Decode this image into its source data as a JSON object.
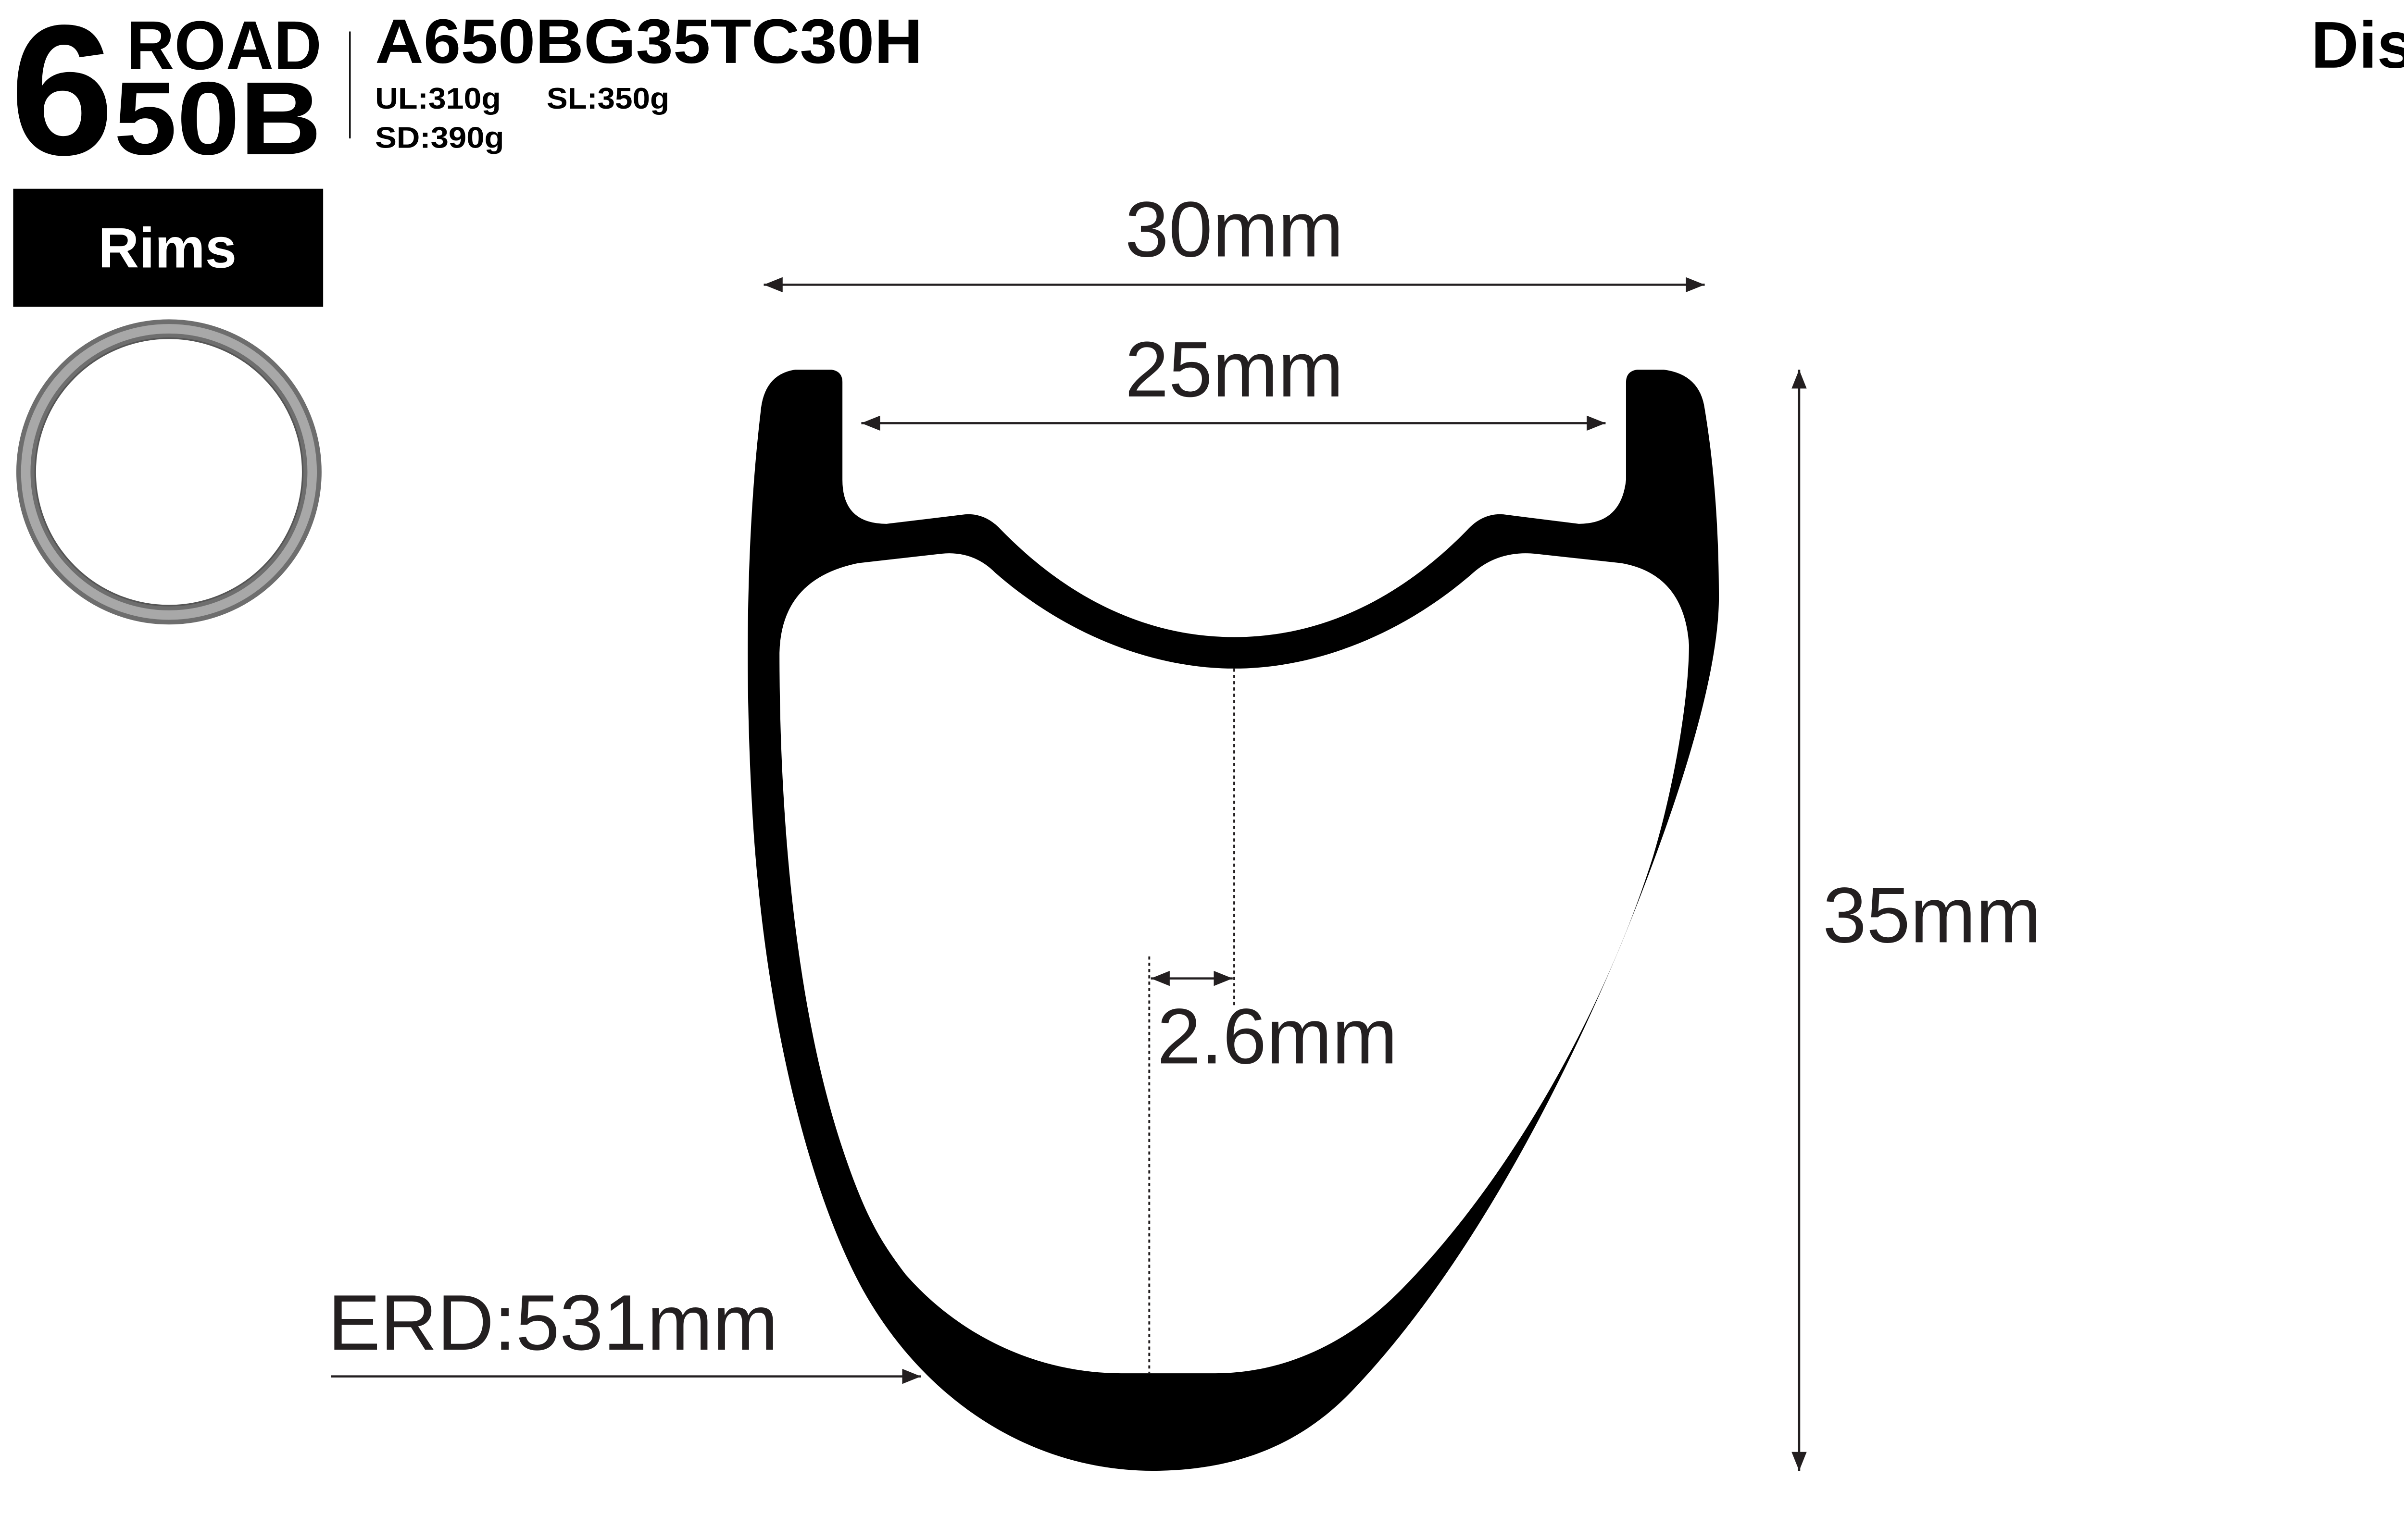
{
  "header": {
    "big_digit": "6",
    "category": "ROAD",
    "size_rest": "50B",
    "model": "A650BG35TC30H",
    "weights": [
      "UL:310g",
      "SL:350g",
      "SD:390g"
    ],
    "brake_type": "Disc",
    "section_label": "Rims"
  },
  "dimensions": {
    "outer_width": "30mm",
    "inner_width": "25mm",
    "depth": "35mm",
    "wall_thickness": "2.6mm",
    "erd": "ERD:531mm"
  },
  "colors": {
    "ink": "#000000",
    "dimension_text": "#231f20",
    "rim_icon": "#8a8a8a"
  }
}
